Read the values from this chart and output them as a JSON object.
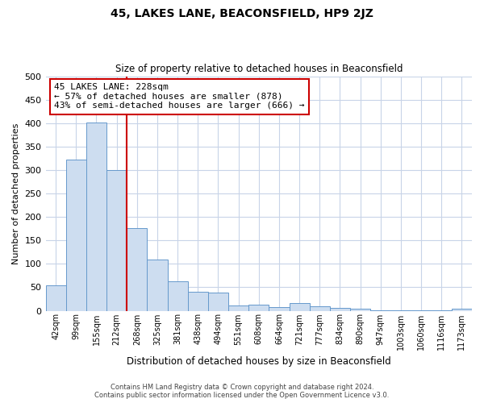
{
  "title": "45, LAKES LANE, BEACONSFIELD, HP9 2JZ",
  "subtitle": "Size of property relative to detached houses in Beaconsfield",
  "xlabel": "Distribution of detached houses by size in Beaconsfield",
  "ylabel": "Number of detached properties",
  "categories": [
    "42sqm",
    "99sqm",
    "155sqm",
    "212sqm",
    "268sqm",
    "325sqm",
    "381sqm",
    "438sqm",
    "494sqm",
    "551sqm",
    "608sqm",
    "664sqm",
    "721sqm",
    "777sqm",
    "834sqm",
    "890sqm",
    "947sqm",
    "1003sqm",
    "1060sqm",
    "1116sqm",
    "1173sqm"
  ],
  "values": [
    55,
    322,
    402,
    300,
    177,
    109,
    63,
    41,
    38,
    12,
    13,
    8,
    17,
    10,
    6,
    5,
    1,
    1,
    1,
    1,
    5
  ],
  "bar_color": "#cdddf0",
  "bar_edge_color": "#6699cc",
  "vline_x_index": 3,
  "vline_color": "#cc0000",
  "annotation_text": "45 LAKES LANE: 228sqm\n← 57% of detached houses are smaller (878)\n43% of semi-detached houses are larger (666) →",
  "annotation_box_edge_color": "#cc0000",
  "annotation_box_face_color": "#ffffff",
  "ylim": [
    0,
    500
  ],
  "yticks": [
    0,
    50,
    100,
    150,
    200,
    250,
    300,
    350,
    400,
    450,
    500
  ],
  "footer_line1": "Contains HM Land Registry data © Crown copyright and database right 2024.",
  "footer_line2": "Contains public sector information licensed under the Open Government Licence v3.0.",
  "background_color": "#ffffff",
  "grid_color": "#c8d4e8"
}
